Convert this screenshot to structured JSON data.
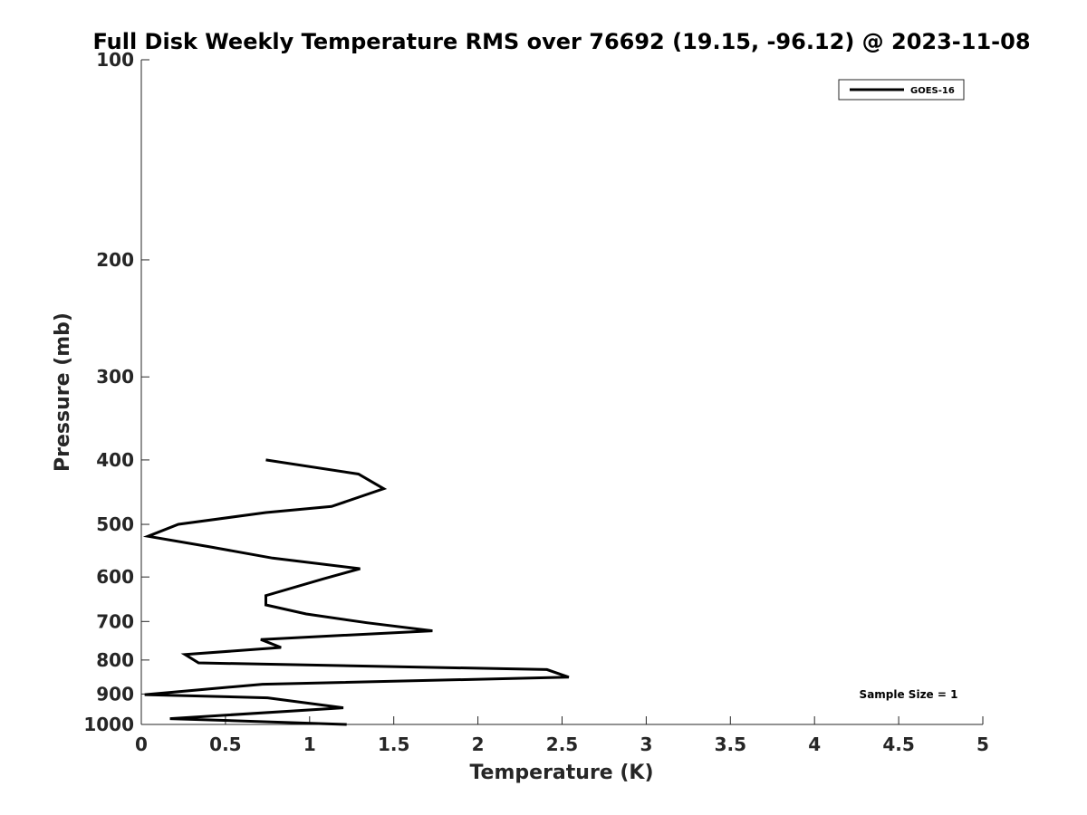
{
  "chart_data": {
    "type": "line",
    "title": "Full Disk Weekly Temperature RMS over 76692 (19.15, -96.12) @ 2023-11-08",
    "xlabel": "Temperature (K)",
    "ylabel": "Pressure (mb)",
    "xlim": [
      0,
      5
    ],
    "ylim": [
      100,
      1000
    ],
    "y_scale": "log",
    "y_reversed": true,
    "x_ticks": [
      "0",
      "0.5",
      "1",
      "1.5",
      "2",
      "2.5",
      "3",
      "3.5",
      "4",
      "4.5",
      "5"
    ],
    "y_ticks": [
      "100",
      "200",
      "300",
      "400",
      "500",
      "600",
      "700",
      "800",
      "900",
      "1000"
    ],
    "legend_position": "top-right",
    "grid": false,
    "series": [
      {
        "name": "GOES-16",
        "color": "#000000",
        "points": [
          [
            0.74,
            400
          ],
          [
            1.29,
            420
          ],
          [
            1.44,
            442
          ],
          [
            1.13,
            470
          ],
          [
            0.74,
            480
          ],
          [
            0.22,
            500
          ],
          [
            0.04,
            521
          ],
          [
            0.4,
            540
          ],
          [
            0.78,
            562
          ],
          [
            1.3,
            583
          ],
          [
            1.08,
            604
          ],
          [
            0.74,
            640
          ],
          [
            0.74,
            661
          ],
          [
            0.98,
            682
          ],
          [
            1.34,
            703
          ],
          [
            1.73,
            723
          ],
          [
            0.71,
            745
          ],
          [
            0.83,
            766
          ],
          [
            0.26,
            785
          ],
          [
            0.34,
            808
          ],
          [
            2.41,
            827
          ],
          [
            2.54,
            849
          ],
          [
            0.72,
            870
          ],
          [
            0.02,
            902
          ],
          [
            0.75,
            912
          ],
          [
            1.2,
            944
          ],
          [
            0.17,
            980
          ],
          [
            1.22,
            1000
          ]
        ]
      }
    ],
    "annotation": "Sample Size = 1"
  }
}
